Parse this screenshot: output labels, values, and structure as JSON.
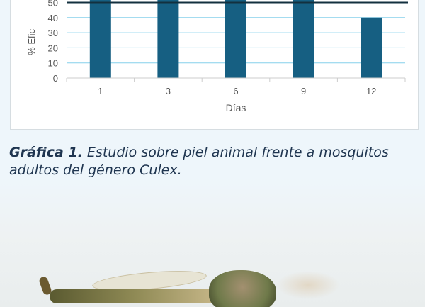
{
  "chart_data": {
    "type": "bar",
    "categories": [
      "1",
      "3",
      "6",
      "9",
      "12"
    ],
    "values": [
      null,
      null,
      null,
      null,
      40
    ],
    "xlabel": "Días",
    "ylabel": "% Efic",
    "y_ticks": [
      0,
      10,
      20,
      30,
      40,
      50
    ],
    "ylim": [
      0,
      50
    ],
    "reference_line": 50,
    "grid": true,
    "colors": {
      "bar": "#165f82",
      "grid": "#86d0ec",
      "reference_line": "#13303f"
    }
  },
  "caption": {
    "label": "Gráfica 1.",
    "text": " Estudio sobre piel animal frente a mosquitos adultos del género Culex."
  }
}
